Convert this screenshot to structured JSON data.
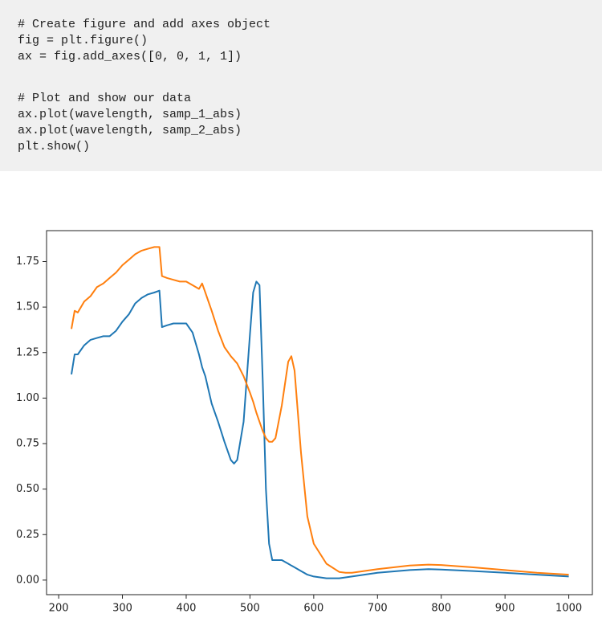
{
  "code": [
    "# Create figure and add axes object",
    "fig = plt.figure()",
    "ax = fig.add_axes([0, 0, 1, 1])",
    "# Plot and show our data",
    "ax.plot(wavelength, samp_1_abs)",
    "ax.plot(wavelength, samp_2_abs)",
    "plt.show()"
  ],
  "chart_data": {
    "type": "line",
    "x": [
      220,
      225,
      230,
      240,
      250,
      260,
      270,
      280,
      290,
      300,
      310,
      320,
      330,
      340,
      350,
      358,
      362,
      370,
      380,
      390,
      400,
      410,
      420,
      425,
      430,
      440,
      450,
      460,
      470,
      475,
      480,
      490,
      500,
      505,
      510,
      515,
      520,
      525,
      530,
      535,
      540,
      550,
      560,
      565,
      570,
      580,
      590,
      600,
      620,
      640,
      650,
      660,
      700,
      750,
      780,
      800,
      850,
      900,
      950,
      1000
    ],
    "series": [
      {
        "color": "#1f77b4",
        "values": [
          1.13,
          1.24,
          1.24,
          1.29,
          1.32,
          1.33,
          1.34,
          1.34,
          1.37,
          1.42,
          1.46,
          1.52,
          1.55,
          1.57,
          1.58,
          1.59,
          1.39,
          1.4,
          1.41,
          1.41,
          1.41,
          1.36,
          1.24,
          1.17,
          1.12,
          0.97,
          0.87,
          0.76,
          0.66,
          0.64,
          0.66,
          0.87,
          1.35,
          1.58,
          1.64,
          1.62,
          1.1,
          0.5,
          0.2,
          0.11,
          0.11,
          0.11,
          0.09,
          0.08,
          0.07,
          0.05,
          0.03,
          0.02,
          0.01,
          0.01,
          0.015,
          0.02,
          0.04,
          0.055,
          0.06,
          0.058,
          0.05,
          0.04,
          0.03,
          0.02
        ]
      },
      {
        "color": "#ff7f0e",
        "values": [
          1.38,
          1.48,
          1.47,
          1.53,
          1.56,
          1.61,
          1.63,
          1.66,
          1.69,
          1.73,
          1.76,
          1.79,
          1.81,
          1.82,
          1.83,
          1.83,
          1.67,
          1.66,
          1.65,
          1.64,
          1.64,
          1.62,
          1.6,
          1.63,
          1.58,
          1.48,
          1.37,
          1.28,
          1.23,
          1.21,
          1.19,
          1.12,
          1.03,
          0.98,
          0.92,
          0.87,
          0.82,
          0.78,
          0.76,
          0.76,
          0.78,
          0.96,
          1.2,
          1.23,
          1.15,
          0.7,
          0.35,
          0.2,
          0.09,
          0.045,
          0.04,
          0.04,
          0.06,
          0.08,
          0.085,
          0.083,
          0.07,
          0.055,
          0.04,
          0.03
        ]
      }
    ],
    "xlim": [
      181,
      1037
    ],
    "xticks": [
      200,
      300,
      400,
      500,
      600,
      700,
      800,
      900,
      1000
    ],
    "ylim": [
      -0.08,
      1.92
    ],
    "yticks": [
      {
        "value": 0,
        "label": "0.00"
      },
      {
        "value": 0.25,
        "label": "0.25"
      },
      {
        "value": 0.5,
        "label": "0.50"
      },
      {
        "value": 0.75,
        "label": "0.75"
      },
      {
        "value": 1,
        "label": "1.00"
      },
      {
        "value": 1.25,
        "label": "1.25"
      },
      {
        "value": 1.5,
        "label": "1.50"
      },
      {
        "value": 1.75,
        "label": "1.75"
      }
    ]
  }
}
